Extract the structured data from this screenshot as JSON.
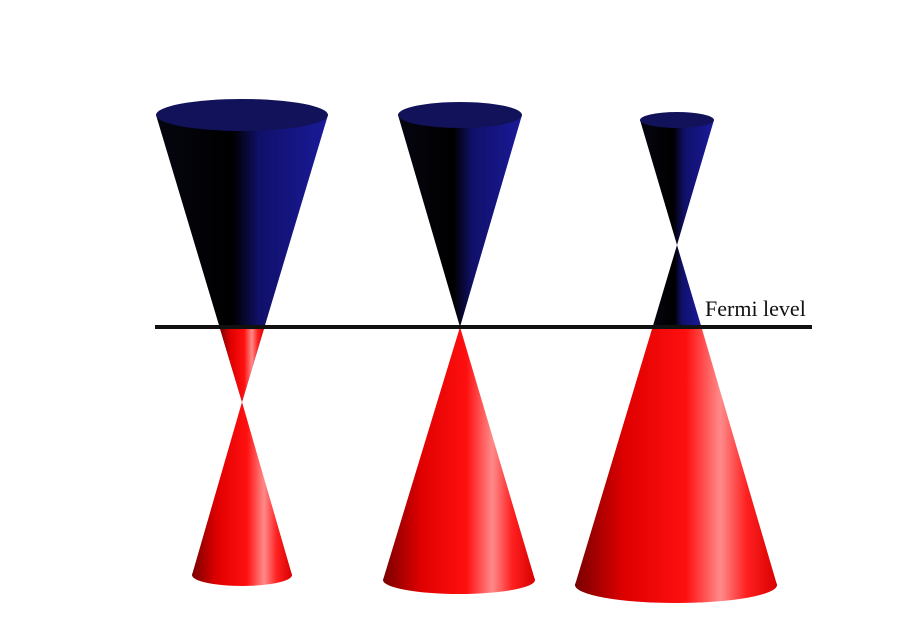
{
  "labels": {
    "fermi_level": "Fermi level"
  }
}
